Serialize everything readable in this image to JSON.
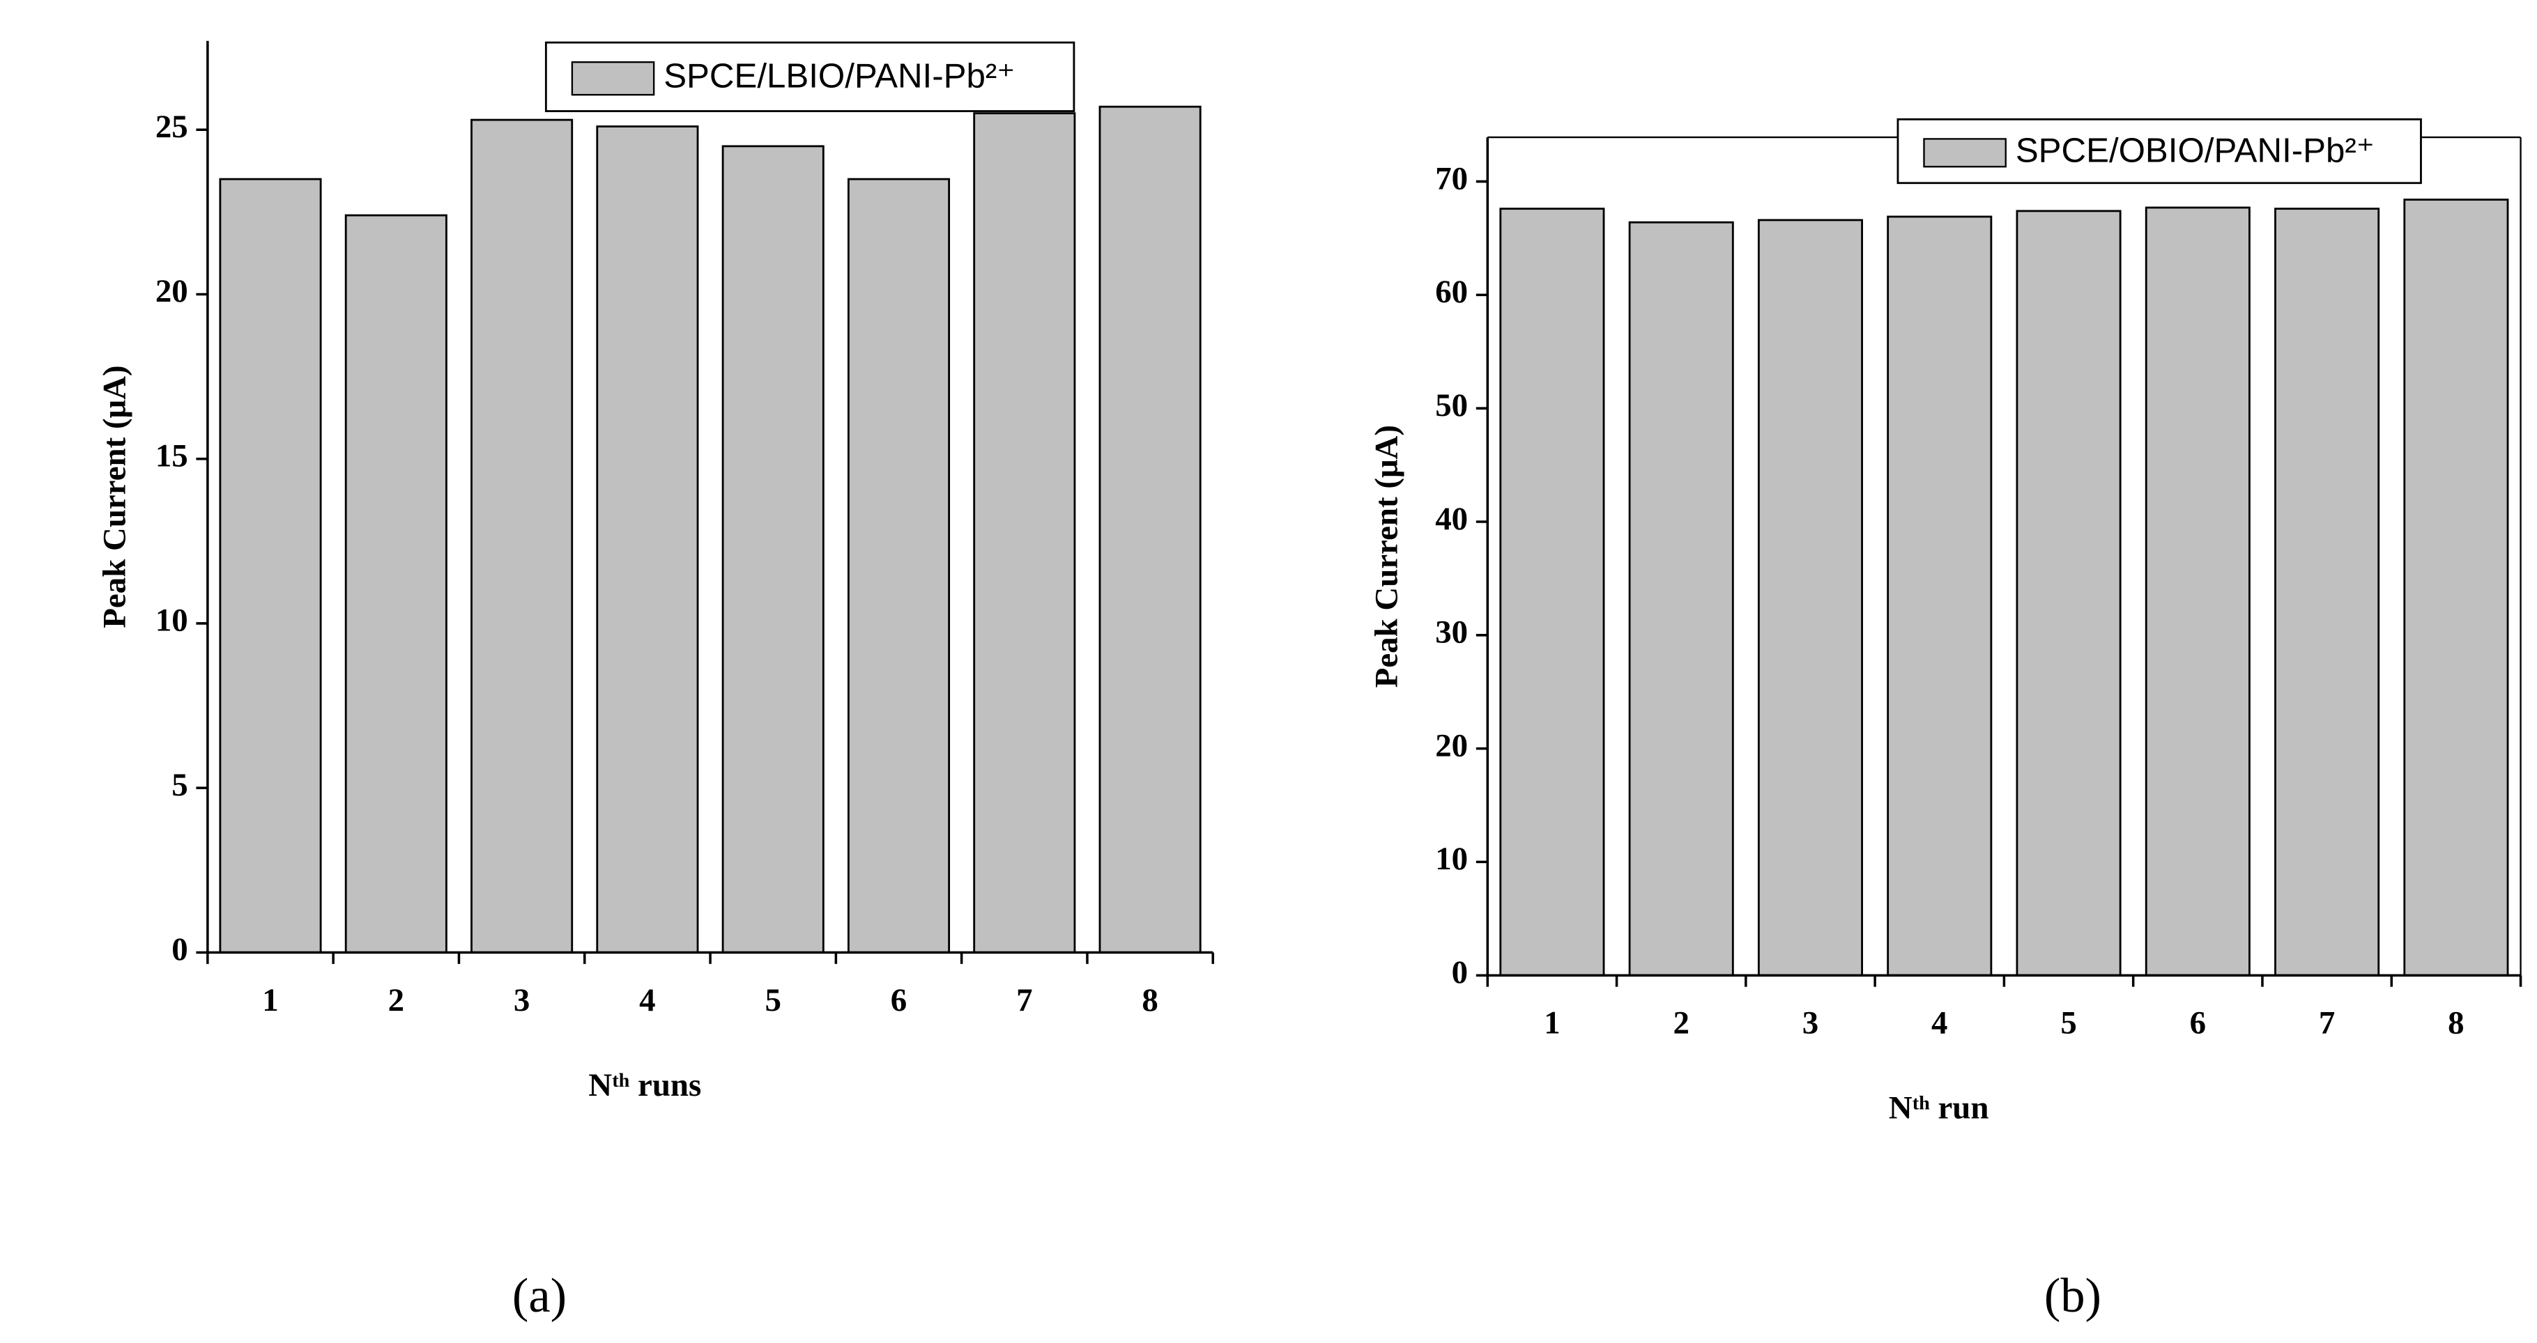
{
  "chart_data": [
    {
      "type": "bar",
      "panel_label": "(a)",
      "x_label": "Nᵗʰ runs",
      "y_label": "Peak Current (μA)",
      "categories": [
        "1",
        "2",
        "3",
        "4",
        "5",
        "6",
        "7",
        "8"
      ],
      "series": [
        {
          "name": "SPCE/LBIO/PANI-Pb²⁺",
          "color": "#c0c0c0",
          "values": [
            23.5,
            22.4,
            25.3,
            25.1,
            24.5,
            23.5,
            25.5,
            25.7
          ]
        }
      ],
      "ylim": [
        0,
        27.7
      ],
      "yticks": [
        0,
        5,
        10,
        15,
        20,
        25
      ],
      "legend": "upper center"
    },
    {
      "type": "bar",
      "panel_label": "(b)",
      "x_label": "Nᵗʰ run",
      "y_label": "Peak Current (μA)",
      "categories": [
        "1",
        "2",
        "3",
        "4",
        "5",
        "6",
        "7",
        "8"
      ],
      "series": [
        {
          "name": "SPCE/OBIO/PANI-Pb²⁺",
          "color": "#c0c0c0",
          "values": [
            67.6,
            66.4,
            66.6,
            66.9,
            67.4,
            67.7,
            67.6,
            68.4
          ]
        }
      ],
      "ylim": [
        0,
        73.9
      ],
      "yticks": [
        0,
        10,
        20,
        30,
        40,
        50,
        60,
        70
      ],
      "legend": "upper right"
    }
  ]
}
